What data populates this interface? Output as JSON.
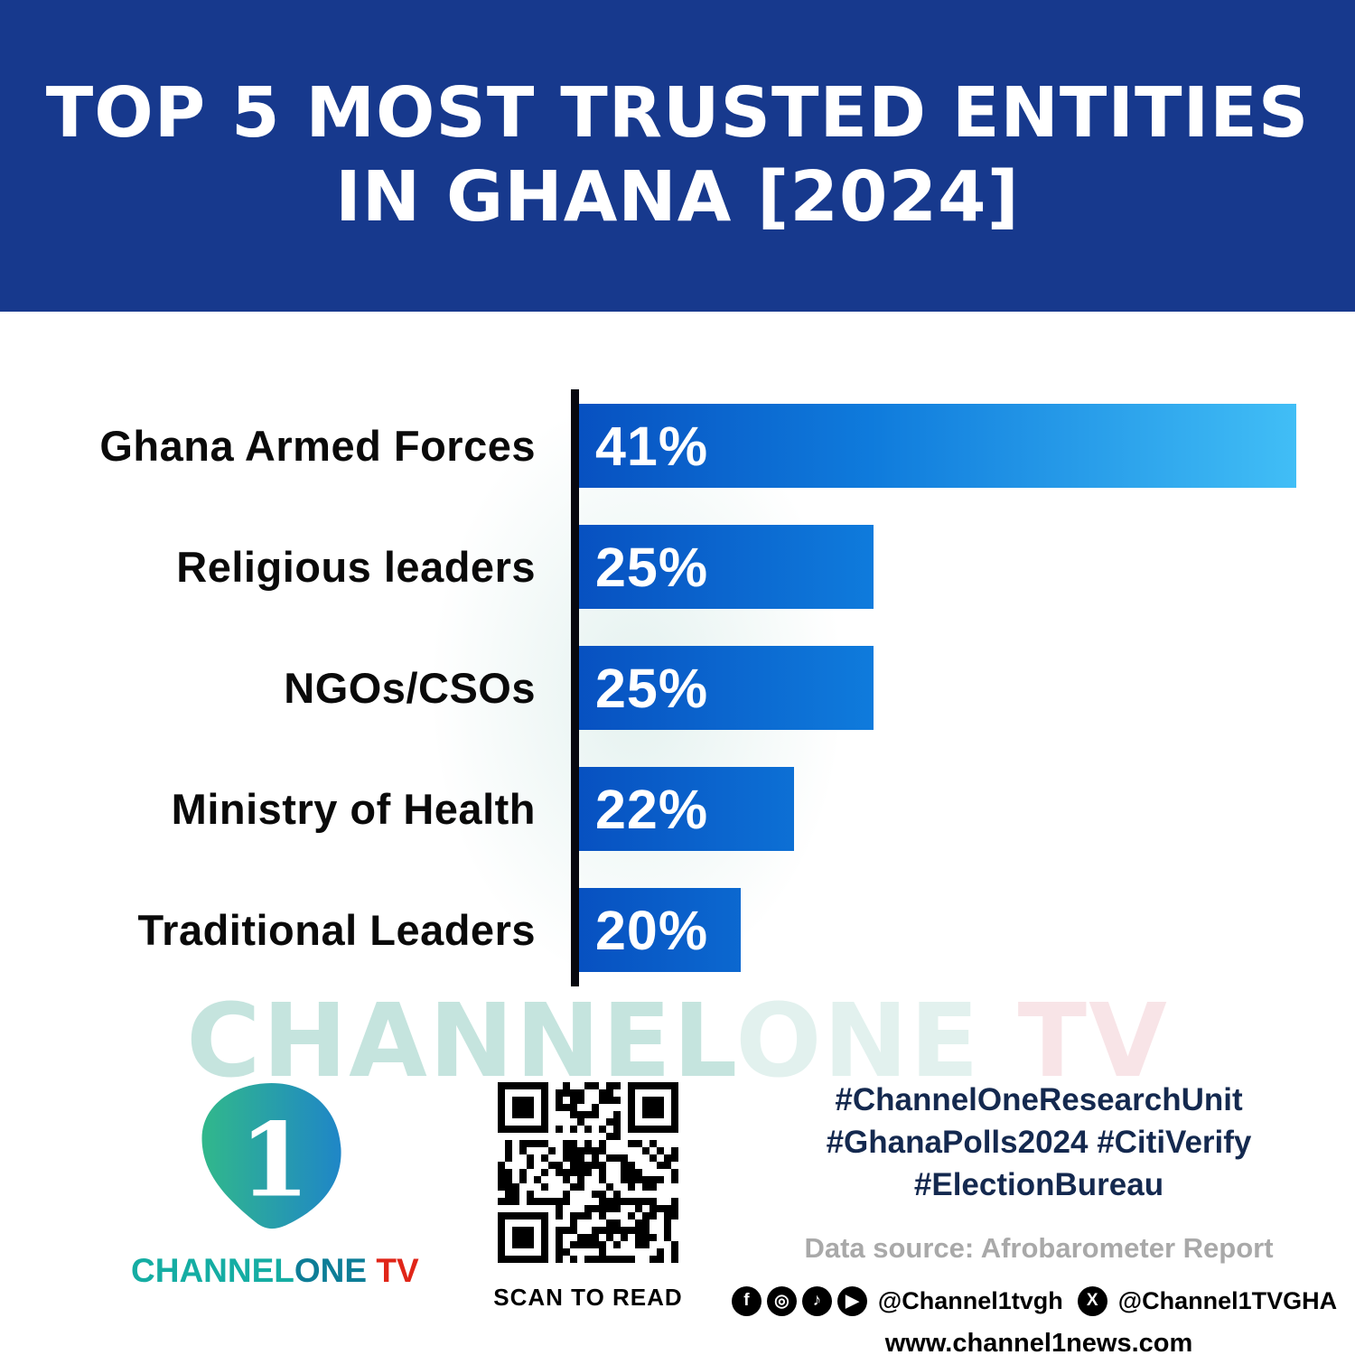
{
  "header": {
    "title_line1": "TOP 5 MOST TRUSTED ENTITIES",
    "title_line2": "IN GHANA [2024]"
  },
  "chart_data": {
    "type": "bar",
    "orientation": "horizontal",
    "title": "Top 5 Most Trusted Entities in Ghana [2024]",
    "categories": [
      "Ghana Armed Forces",
      "Religious leaders",
      "NGOs/CSOs",
      "Ministry of Health",
      "Traditional Leaders"
    ],
    "values": [
      41,
      25,
      25,
      22,
      20
    ],
    "value_labels": [
      "41%",
      "25%",
      "25%",
      "22%",
      "20%"
    ],
    "value_suffix": "%",
    "xlim": [
      0,
      45
    ],
    "grid": false,
    "value_axis_visible": false,
    "legend": "none",
    "bar_gradient": [
      "#0750c0",
      "#41bef6"
    ],
    "axis_line_color": "#07080f",
    "label_color": "#0a0a0a",
    "value_label_color": "#ffffff"
  },
  "watermark": {
    "part1": "CHANNEL",
    "part2": "ONE",
    "part3": " TV"
  },
  "footer": {
    "brand": {
      "logo_digit": "1",
      "channel": "CHANNEL",
      "one": "ONE",
      "tv": " TV"
    },
    "qr_caption": "SCAN TO READ",
    "hashtags_line1": "#ChannelOneResearchUnit",
    "hashtags_line2": "#GhanaPolls2024 #CitiVerify",
    "hashtags_line3": "#ElectionBureau",
    "data_source": "Data source: Afrobarometer Report",
    "social": {
      "icons": [
        {
          "name": "facebook-icon",
          "glyph": "f"
        },
        {
          "name": "instagram-icon",
          "glyph": "◎"
        },
        {
          "name": "tiktok-icon",
          "glyph": "♪"
        },
        {
          "name": "youtube-icon",
          "glyph": "▶"
        }
      ],
      "handle1": "@Channel1tvgh",
      "x_icon_glyph": "X",
      "handle2": "@Channel1TVGHA"
    },
    "website": "www.channel1news.com"
  }
}
